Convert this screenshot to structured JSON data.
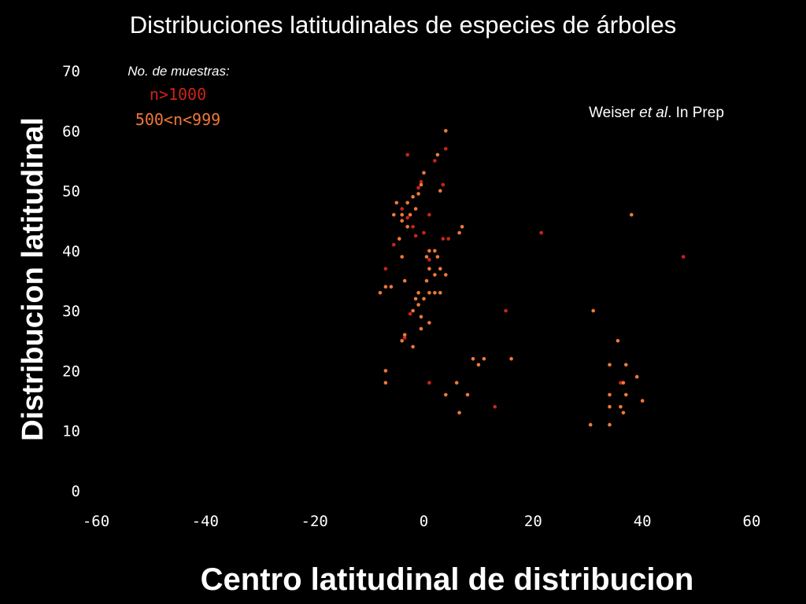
{
  "chart_data": {
    "type": "scatter",
    "title": "Distribuciones latitudinales de especies de árboles",
    "xlabel": "Centro latitudinal de distribucion",
    "ylabel": "Distribucion latitudinal",
    "xlim": [
      -60,
      60
    ],
    "ylim": [
      0,
      70
    ],
    "xticks": [
      "-60",
      "-40",
      "-20",
      "0",
      "20",
      "40",
      "60"
    ],
    "yticks": [
      "0",
      "10",
      "20",
      "30",
      "40",
      "50",
      "60",
      "70"
    ],
    "grid": false,
    "legend": {
      "placement": "top-left",
      "heading": "No. de muestras:",
      "entries": [
        {
          "label": "n>1000",
          "color": "#cc2418"
        },
        {
          "label": "500<n<999",
          "color": "#f07838"
        }
      ]
    },
    "annotation": {
      "pre": "Weiser ",
      "italic": "et al",
      "post": ". In Prep"
    },
    "series": [
      {
        "name": "n>1000",
        "color": "#cc2418",
        "points": [
          [
            -3,
            56
          ],
          [
            2,
            55
          ],
          [
            4,
            57
          ],
          [
            -0.5,
            51.5
          ],
          [
            -1,
            50.5
          ],
          [
            3.5,
            51
          ],
          [
            -4,
            47
          ],
          [
            -3,
            45.5
          ],
          [
            -2,
            44
          ],
          [
            -1.5,
            42.5
          ],
          [
            0,
            43
          ],
          [
            1,
            46
          ],
          [
            -5.5,
            41
          ],
          [
            3.5,
            42
          ],
          [
            4.5,
            42
          ],
          [
            -7,
            37
          ],
          [
            1,
            38.5
          ],
          [
            -2.5,
            29.5
          ],
          [
            -3.5,
            25.5
          ],
          [
            1,
            18
          ],
          [
            15,
            30
          ],
          [
            21.5,
            43
          ],
          [
            47.5,
            39
          ],
          [
            13,
            14
          ],
          [
            36,
            18
          ]
        ]
      },
      {
        "name": "500<n<999",
        "color": "#f07838",
        "points": [
          [
            4,
            60
          ],
          [
            2.5,
            56
          ],
          [
            0,
            53
          ],
          [
            -0.5,
            51
          ],
          [
            -1,
            49.5
          ],
          [
            3,
            50
          ],
          [
            -2,
            49
          ],
          [
            -3,
            48
          ],
          [
            -5,
            48
          ],
          [
            -4,
            46
          ],
          [
            -2.5,
            46
          ],
          [
            -5.5,
            46
          ],
          [
            -4,
            45
          ],
          [
            -3,
            44
          ],
          [
            -1.5,
            47
          ],
          [
            -4.5,
            42
          ],
          [
            7,
            44
          ],
          [
            6.5,
            43
          ],
          [
            -6,
            34
          ],
          [
            -8,
            33
          ],
          [
            -7,
            34
          ],
          [
            -4,
            39
          ],
          [
            1,
            40
          ],
          [
            2,
            40
          ],
          [
            0.5,
            39
          ],
          [
            2.5,
            39
          ],
          [
            1,
            37
          ],
          [
            2,
            36
          ],
          [
            4,
            36
          ],
          [
            3,
            37
          ],
          [
            -3.5,
            35
          ],
          [
            0.5,
            35
          ],
          [
            -1,
            33
          ],
          [
            1,
            33
          ],
          [
            2,
            33
          ],
          [
            3,
            33
          ],
          [
            -1.5,
            32
          ],
          [
            0,
            32
          ],
          [
            -1,
            31
          ],
          [
            -2,
            30
          ],
          [
            -0.5,
            29
          ],
          [
            1,
            28
          ],
          [
            -0.5,
            27
          ],
          [
            -3.5,
            26
          ],
          [
            -4,
            25
          ],
          [
            -2,
            24
          ],
          [
            -7,
            20
          ],
          [
            -7,
            18
          ],
          [
            6,
            18
          ],
          [
            4,
            16
          ],
          [
            8,
            16
          ],
          [
            6.5,
            13
          ],
          [
            9,
            22
          ],
          [
            10,
            21
          ],
          [
            11,
            22
          ],
          [
            16,
            22
          ],
          [
            31,
            30
          ],
          [
            35.5,
            25
          ],
          [
            34,
            21
          ],
          [
            37,
            21
          ],
          [
            39,
            19
          ],
          [
            36.5,
            18
          ],
          [
            34,
            16
          ],
          [
            37,
            16
          ],
          [
            36,
            14
          ],
          [
            34,
            14
          ],
          [
            36.5,
            13
          ],
          [
            40,
            15
          ],
          [
            30.5,
            11
          ],
          [
            34,
            11
          ],
          [
            38,
            46
          ]
        ]
      }
    ]
  }
}
